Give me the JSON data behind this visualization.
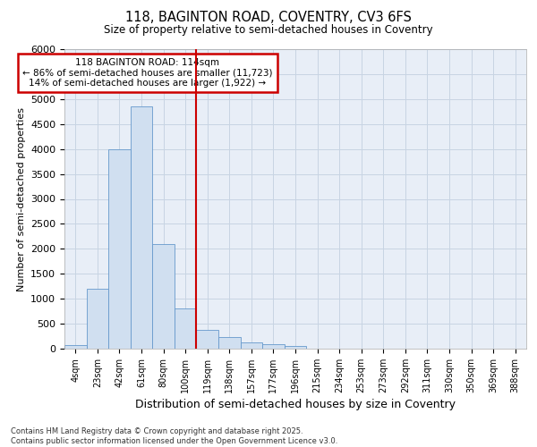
{
  "title_line1": "118, BAGINTON ROAD, COVENTRY, CV3 6FS",
  "title_line2": "Size of property relative to semi-detached houses in Coventry",
  "xlabel": "Distribution of semi-detached houses by size in Coventry",
  "ylabel": "Number of semi-detached properties",
  "categories": [
    "4sqm",
    "23sqm",
    "42sqm",
    "61sqm",
    "80sqm",
    "100sqm",
    "119sqm",
    "138sqm",
    "157sqm",
    "177sqm",
    "196sqm",
    "215sqm",
    "234sqm",
    "253sqm",
    "273sqm",
    "292sqm",
    "311sqm",
    "330sqm",
    "350sqm",
    "369sqm",
    "388sqm"
  ],
  "values": [
    75,
    1200,
    4000,
    4850,
    2100,
    800,
    370,
    230,
    130,
    90,
    50,
    0,
    0,
    0,
    0,
    0,
    0,
    0,
    0,
    0,
    0
  ],
  "bar_color": "#d0dff0",
  "bar_edge_color": "#6699cc",
  "grid_color": "#c8d4e3",
  "background_color": "#e8eef7",
  "vline_x_index": 5.5,
  "vline_color": "#cc0000",
  "annotation_title": "118 BAGINTON ROAD: 114sqm",
  "annotation_line1": "← 86% of semi-detached houses are smaller (11,723)",
  "annotation_line2": "14% of semi-detached houses are larger (1,922) →",
  "annotation_box_color": "#cc0000",
  "footnote_line1": "Contains HM Land Registry data © Crown copyright and database right 2025.",
  "footnote_line2": "Contains public sector information licensed under the Open Government Licence v3.0.",
  "ylim": [
    0,
    6000
  ],
  "yticks": [
    0,
    500,
    1000,
    1500,
    2000,
    2500,
    3000,
    3500,
    4000,
    4500,
    5000,
    5500,
    6000
  ]
}
